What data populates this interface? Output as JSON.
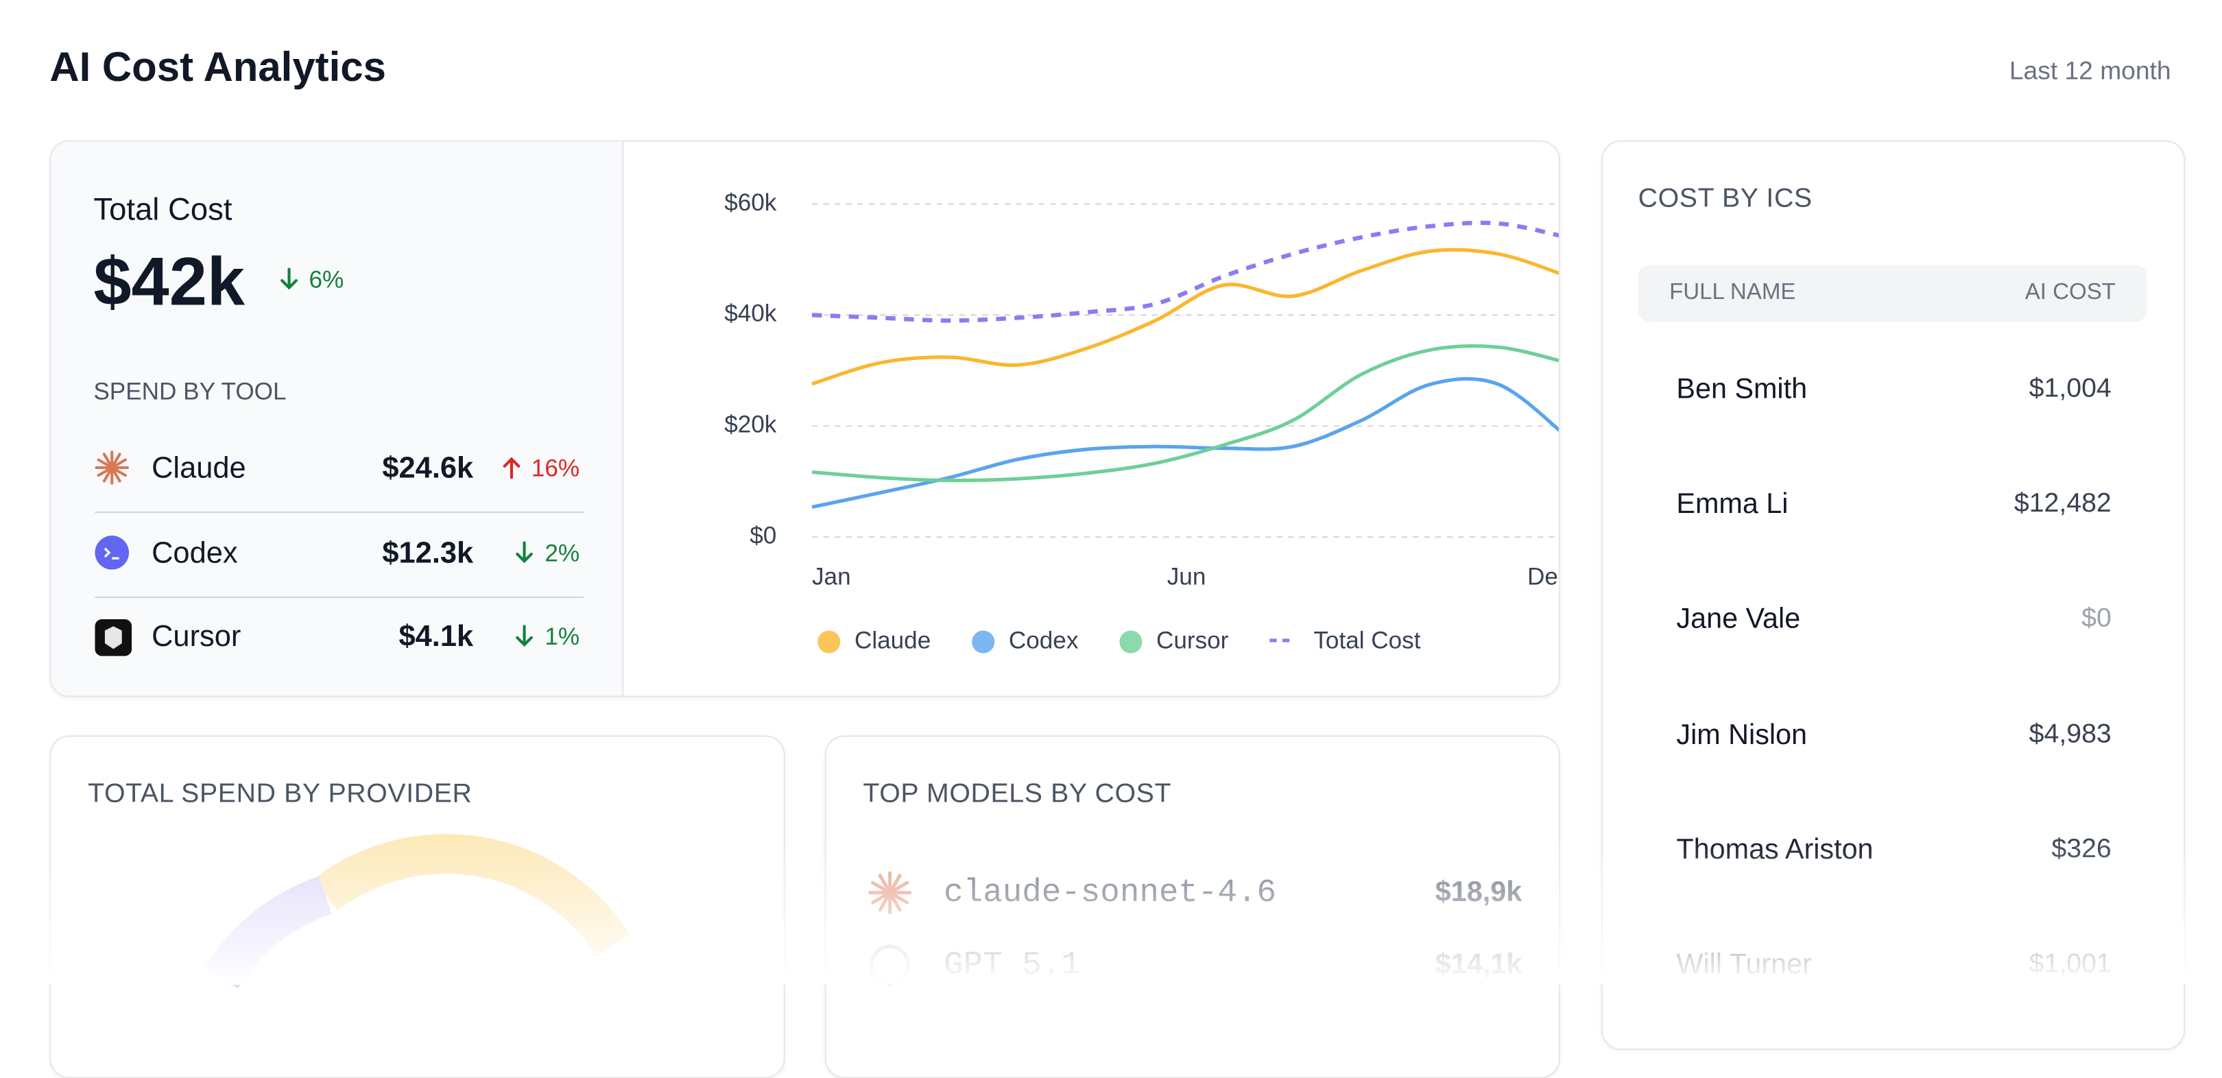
{
  "header": {
    "title": "AI Cost Analytics",
    "period": "Last 12 month"
  },
  "total_cost": {
    "label": "Total Cost",
    "value": "$42k",
    "change": "6%",
    "direction": "down",
    "section_title": "SPEND BY TOOL",
    "tools": [
      {
        "name": "Claude",
        "value": "$24.6k",
        "change": "16%",
        "direction": "up"
      },
      {
        "name": "Codex",
        "value": "$12.3k",
        "change": "2%",
        "direction": "down"
      },
      {
        "name": "Cursor",
        "value": "$4.1k",
        "change": "1%",
        "direction": "down"
      }
    ]
  },
  "chart_data": {
    "type": "line",
    "categories": [
      "Jan",
      null,
      null,
      null,
      null,
      "Jun",
      null,
      null,
      null,
      null,
      null,
      "Dec"
    ],
    "series": [
      {
        "name": "Claude",
        "color": "#fbb62f",
        "values": [
          27.6,
          31.4,
          32.4,
          31,
          34,
          39,
          45.4,
          43.4,
          48,
          51.5,
          51,
          47
        ]
      },
      {
        "name": "Codex",
        "color": "#5ba3ee",
        "values": [
          5.4,
          8,
          10.7,
          14,
          15.8,
          16.3,
          16,
          16.3,
          21,
          27.5,
          27.5,
          18
        ]
      },
      {
        "name": "Cursor",
        "color": "#6fcf97",
        "values": [
          11.7,
          10.7,
          10.2,
          10.5,
          11.5,
          13.3,
          16.6,
          21,
          29.3,
          33.7,
          34.2,
          31.4
        ]
      },
      {
        "name": "Total Cost",
        "color": "#8b7cf0",
        "dashed": true,
        "values": [
          40,
          39.5,
          39,
          39.5,
          40.5,
          42,
          47,
          51,
          54,
          56,
          56.5,
          54
        ]
      }
    ],
    "ylim": [
      0,
      60
    ],
    "yticks": [
      {
        "value": 0,
        "label": "$0"
      },
      {
        "value": 20,
        "label": "$20k"
      },
      {
        "value": 40,
        "label": "$40k"
      },
      {
        "value": 60,
        "label": "$60k"
      }
    ],
    "grid": true
  },
  "cost_by_ics": {
    "title": "COST BY ICS",
    "columns": [
      "FULL NAME",
      "AI COST"
    ],
    "rows": [
      [
        "Ben Smith",
        "$1,004"
      ],
      [
        "Emma Li",
        "$12,482"
      ],
      [
        "Jane Vale",
        "$0"
      ],
      [
        "Jim Nislon",
        "$4,983"
      ],
      [
        "Thomas Ariston",
        "$326"
      ],
      [
        "Will Turner",
        "$1,001"
      ]
    ]
  },
  "provider": {
    "title": "TOTAL SPEND BY PROVIDER"
  },
  "top_models": {
    "title": "TOP MODELS BY COST",
    "rows": [
      {
        "name": "claude-sonnet-4.6",
        "value": "$18,9k"
      },
      {
        "name": "GPT 5.1",
        "value": "$14,1k"
      }
    ]
  }
}
